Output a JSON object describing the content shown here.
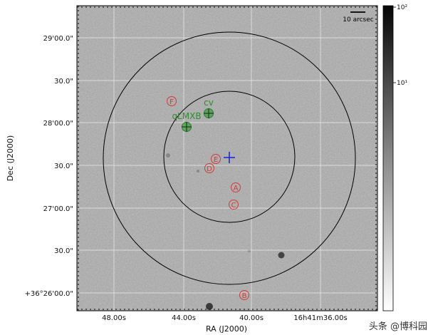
{
  "figure": {
    "xlabel": "RA (J2000)",
    "ylabel": "Dec (J2000)",
    "x_ticks": [
      "48.00s",
      "44.00s",
      "40.00s",
      "16h41m36.00s"
    ],
    "y_ticks": [
      "29'00.0\"",
      "30.0\"",
      "28'00.0\"",
      "30.0\"",
      "27'00.0\"",
      "30.0\"",
      "+36°26'00.0\""
    ],
    "scale_bar_label": "10 arcsec",
    "colorbar_ticks": [
      "10²",
      "10¹"
    ],
    "sources": [
      {
        "id": "F",
        "label": "F",
        "color": "#d23a3a",
        "kind": "optical"
      },
      {
        "id": "E",
        "label": "E",
        "color": "#d23a3a",
        "kind": "optical"
      },
      {
        "id": "D",
        "label": "D",
        "color": "#d23a3a",
        "kind": "optical"
      },
      {
        "id": "A",
        "label": "A",
        "color": "#d23a3a",
        "kind": "optical"
      },
      {
        "id": "C",
        "label": "C",
        "color": "#d23a3a",
        "kind": "optical"
      },
      {
        "id": "B",
        "label": "B",
        "color": "#d23a3a",
        "kind": "optical"
      }
    ],
    "candidates": [
      {
        "id": "cv",
        "label": "cv",
        "color": "#2e8b2e"
      },
      {
        "id": "qlmxb",
        "label": "qLMXB",
        "color": "#2e8b2e"
      }
    ],
    "center_marker_color": "#1e2bd6",
    "ring_color": "#000000"
  },
  "watermark": "头条 @博科园"
}
